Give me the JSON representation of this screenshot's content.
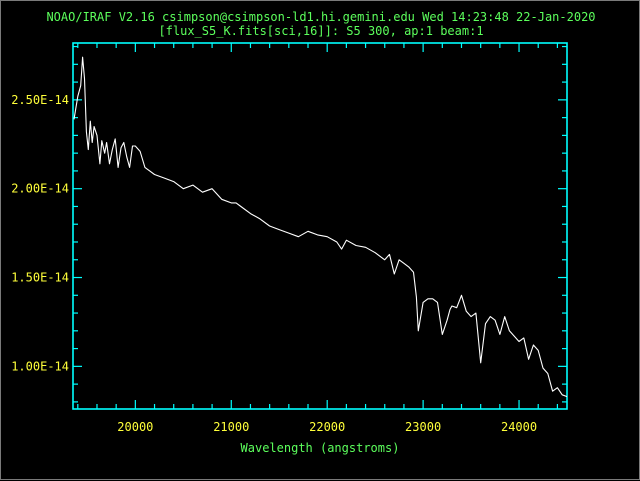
{
  "header": {
    "line1": "NOAO/IRAF V2.16 csimpson@csimpson-ld1.hi.gemini.edu Wed 14:23:48 22-Jan-2020",
    "line2": "[flux_S5_K.fits[sci,16]]: S5 300, ap:1 beam:1"
  },
  "colors": {
    "background": "#000000",
    "axes": "#00ffff",
    "ticks_text": "#ffff3a",
    "labels_text": "#5cff5c",
    "spectrum": "#ffffff"
  },
  "chart_data": {
    "type": "line",
    "title": "",
    "xlabel": "Wavelength (angstroms)",
    "ylabel": "",
    "xlim": [
      19350,
      24500
    ],
    "ylim": [
      7.6e-15,
      2.82e-14
    ],
    "xticks": [
      20000,
      21000,
      22000,
      23000,
      24000
    ],
    "xtick_labels": [
      "20000",
      "21000",
      "22000",
      "23000",
      "24000"
    ],
    "yticks": [
      1e-14,
      1.5e-14,
      2e-14,
      2.5e-14
    ],
    "ytick_labels": [
      "1.00E-14",
      "1.50E-14",
      "2.00E-14",
      "2.50E-14"
    ],
    "grid": false,
    "series": [
      {
        "x": [
          19360,
          19400,
          19430,
          19450,
          19470,
          19490,
          19510,
          19530,
          19550,
          19570,
          19600,
          19630,
          19650,
          19680,
          19700,
          19730,
          19760,
          19790,
          19820,
          19850,
          19880,
          19910,
          19940,
          19970,
          20000,
          20050,
          20100,
          20150,
          20200,
          20300,
          20400,
          20500,
          20600,
          20700,
          20800,
          20900,
          21000,
          21050,
          21100,
          21200,
          21300,
          21400,
          21500,
          21600,
          21700,
          21800,
          21900,
          22000,
          22100,
          22150,
          22200,
          22300,
          22400,
          22500,
          22600,
          22650,
          22700,
          22750,
          22800,
          22850,
          22900,
          22930,
          22950,
          23000,
          23050,
          23100,
          23150,
          23200,
          23250,
          23280,
          23300,
          23350,
          23400,
          23450,
          23500,
          23550,
          23600,
          23650,
          23700,
          23750,
          23800,
          23850,
          23900,
          24000,
          24050,
          24100,
          24150,
          24200,
          24250,
          24300,
          24350,
          24400,
          24450,
          24500
        ],
        "y": [
          2.39e-14,
          2.52e-14,
          2.58e-14,
          2.74e-14,
          2.62e-14,
          2.32e-14,
          2.22e-14,
          2.38e-14,
          2.26e-14,
          2.35e-14,
          2.3e-14,
          2.14e-14,
          2.27e-14,
          2.2e-14,
          2.26e-14,
          2.14e-14,
          2.22e-14,
          2.28e-14,
          2.12e-14,
          2.23e-14,
          2.26e-14,
          2.18e-14,
          2.12e-14,
          2.24e-14,
          2.24e-14,
          2.21e-14,
          2.12e-14,
          2.1e-14,
          2.08e-14,
          2.06e-14,
          2.04e-14,
          2e-14,
          2.02e-14,
          1.98e-14,
          2e-14,
          1.94e-14,
          1.92e-14,
          1.92e-14,
          1.9e-14,
          1.86e-14,
          1.83e-14,
          1.79e-14,
          1.77e-14,
          1.75e-14,
          1.73e-14,
          1.76e-14,
          1.74e-14,
          1.73e-14,
          1.7e-14,
          1.66e-14,
          1.71e-14,
          1.68e-14,
          1.67e-14,
          1.64e-14,
          1.6e-14,
          1.63e-14,
          1.52e-14,
          1.6e-14,
          1.58e-14,
          1.56e-14,
          1.53e-14,
          1.39e-14,
          1.2e-14,
          1.36e-14,
          1.38e-14,
          1.38e-14,
          1.36e-14,
          1.18e-14,
          1.26e-14,
          1.32e-14,
          1.34e-14,
          1.33e-14,
          1.4e-14,
          1.31e-14,
          1.28e-14,
          1.3e-14,
          1.02e-14,
          1.24e-14,
          1.28e-14,
          1.26e-14,
          1.18e-14,
          1.28e-14,
          1.2e-14,
          1.14e-14,
          1.16e-14,
          1.04e-14,
          1.12e-14,
          1.09e-14,
          9.9e-15,
          9.6e-15,
          8.6e-15,
          8.8e-15,
          8.4e-15,
          8.3e-15
        ]
      }
    ]
  }
}
